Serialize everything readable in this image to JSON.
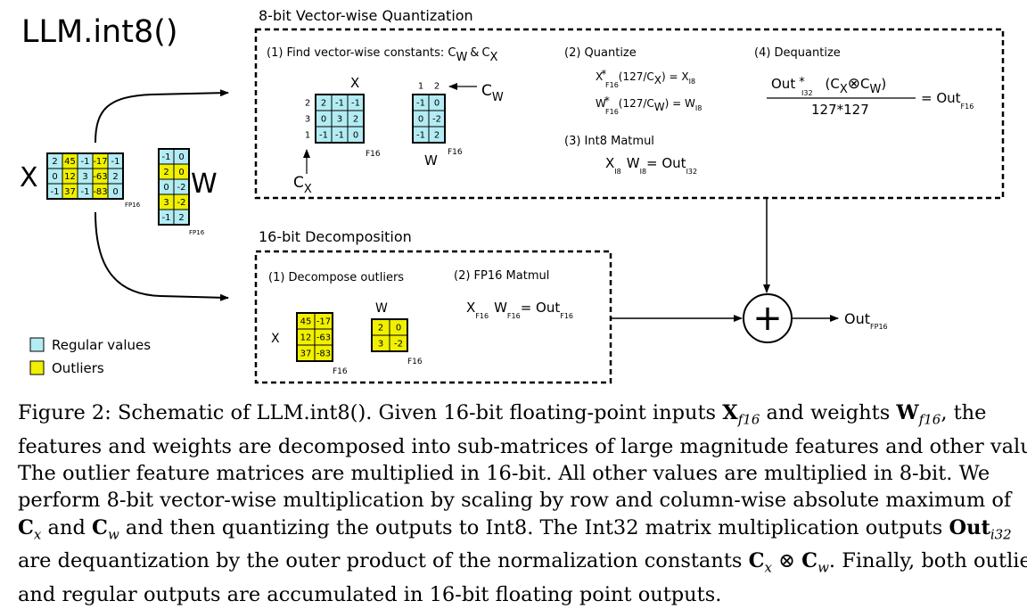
{
  "title": "LLM.int8()",
  "colors": {
    "regular": "#b3ecf3",
    "outlier": "#f0f000",
    "stroke": "#000000"
  },
  "vq": {
    "title": "8-bit Vector-wise Quantization",
    "step1": {
      "label_main": "(1) Find vector-wise constants: C",
      "sub_w": "W",
      "amp": "&",
      "c": "C",
      "sub_x": "X"
    },
    "step2": {
      "label": "(2) Quantize",
      "eq1": {
        "a": "X",
        "star": "*",
        "sub": "F16",
        "mid": "(127/C",
        "csub": "X",
        "rest": ") = X",
        "rsub": "I8"
      },
      "eq2": {
        "a": "W",
        "star": "*",
        "sub": "F16",
        "mid": "(127/C",
        "csub": "W",
        "rest": ") = W",
        "rsub": "I8"
      }
    },
    "step3": {
      "label": "(3) Int8 Matmul",
      "x": "X",
      "xsub": "I8",
      "w": "W",
      "wsub": "I8",
      "eq": "= Out",
      "osub": "I32"
    },
    "step4": {
      "label": "(4) Dequantize",
      "num_a": "Out",
      "num_star": "*",
      "num_sub": "I32",
      "num_b": "(C",
      "num_xsub": "X",
      "otimes": "⊗",
      "num_c": "C",
      "num_wsub": "W",
      "num_d": ")",
      "den": "127*127",
      "rhs": "= Out",
      "rhs_sub": "F16"
    },
    "matrix_x": {
      "label": "X",
      "sub": "F16",
      "row_consts": [
        "2",
        "3",
        "1"
      ],
      "rows": [
        [
          "2",
          "-1",
          "-1"
        ],
        [
          "0",
          "3",
          "2"
        ],
        [
          "-1",
          "-1",
          "0"
        ]
      ],
      "cx_label": "C",
      "cx_sub": "X"
    },
    "matrix_w": {
      "label": "W",
      "sub": "F16",
      "col_consts": [
        "1",
        "2"
      ],
      "rows": [
        [
          "-1",
          "0"
        ],
        [
          "0",
          "-2"
        ],
        [
          "-1",
          "2"
        ]
      ],
      "cw_label": "C",
      "cw_sub": "W"
    }
  },
  "inputs": {
    "x_label": "X",
    "x_sub": "FP16",
    "x_rows": [
      [
        "2",
        "45",
        "-1",
        "-17",
        "-1"
      ],
      [
        "0",
        "12",
        "3",
        "-63",
        "2"
      ],
      [
        "-1",
        "37",
        "-1",
        "-83",
        "0"
      ]
    ],
    "x_outlier_cols": [
      1,
      3
    ],
    "w_label": "W",
    "w_sub": "FP16",
    "w_rows": [
      [
        "-1",
        "0"
      ],
      [
        "2",
        "0"
      ],
      [
        "0",
        "-2"
      ],
      [
        "3",
        "-2"
      ],
      [
        "-1",
        "2"
      ]
    ],
    "w_outlier_rows": [
      1,
      3
    ]
  },
  "decomp": {
    "title": "16-bit Decomposition",
    "step1": "(1) Decompose outliers",
    "step2": "(2) FP16 Matmul",
    "matmul": {
      "x": "X",
      "xsub": "F16",
      "w": "W",
      "wsub": "F16",
      "eq": "= Out",
      "osub": "F16"
    },
    "x_label": "X",
    "x_sub": "F16",
    "x_rows": [
      [
        "45",
        "-17"
      ],
      [
        "12",
        "-63"
      ],
      [
        "37",
        "-83"
      ]
    ],
    "w_label": "W",
    "w_sub": "F16",
    "w_rows": [
      [
        "2",
        "0"
      ],
      [
        "3",
        "-2"
      ]
    ]
  },
  "output": {
    "plus": "+",
    "label": "Out",
    "sub": "FP16"
  },
  "legend": {
    "regular": "Regular values",
    "outliers": "Outliers"
  },
  "caption": {
    "lines": [
      [
        "Figure 2: Schematic of LLM.int8(). Given 16-bit floating-point inputs ",
        {
          "b": "X"
        },
        {
          "s": "f16"
        },
        " and weights ",
        {
          "b": "W"
        },
        {
          "s": "f16"
        },
        ", the"
      ],
      [
        "features and weights are decomposed into sub-matrices of large magnitude features and other values."
      ],
      [
        "The outlier feature matrices are multiplied in 16-bit.  All other values are multiplied in 8-bit.  We"
      ],
      [
        "perform 8-bit vector-wise multiplication by scaling by row and column-wise absolute maximum of"
      ],
      [
        {
          "b": "C"
        },
        {
          "s": "x"
        },
        " and ",
        {
          "b": "C"
        },
        {
          "s": "w"
        },
        " and then quantizing the outputs to Int8. The Int32 matrix multiplication outputs ",
        {
          "b": "Out"
        },
        {
          "s": "i32"
        }
      ],
      [
        "are dequantization by the outer product of the normalization constants ",
        {
          "b": "C"
        },
        {
          "s": "x"
        },
        " ⊗ ",
        {
          "b": "C"
        },
        {
          "s": "w"
        },
        ". Finally, both outlier"
      ],
      [
        "and regular outputs are accumulated in 16-bit floating point outputs."
      ]
    ]
  }
}
